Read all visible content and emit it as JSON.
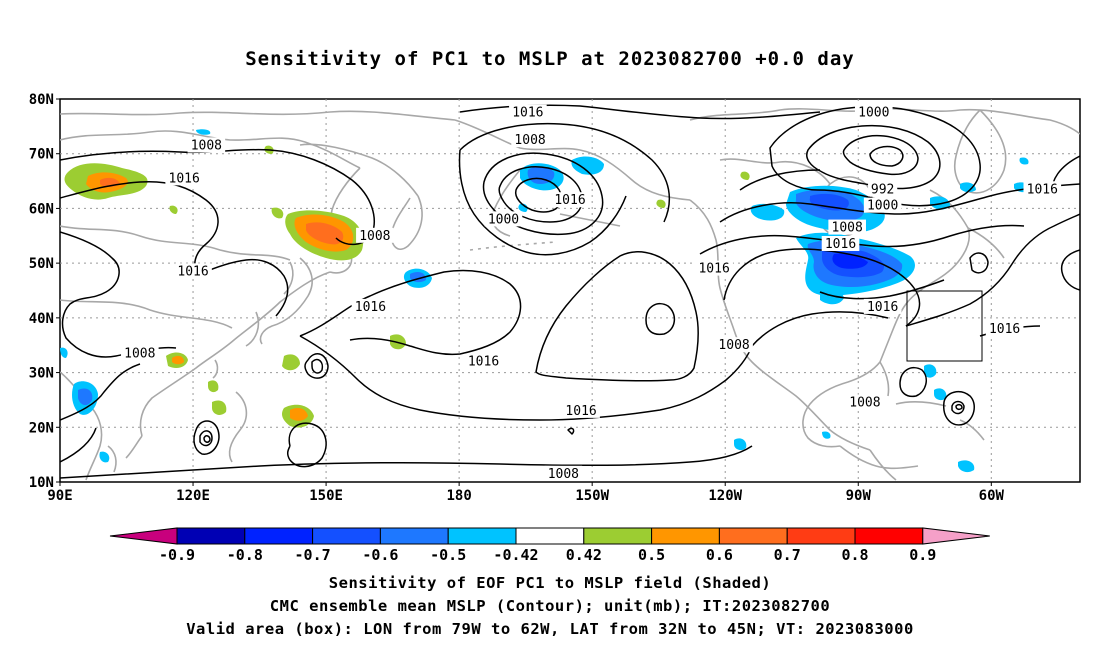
{
  "title": "Sensitivity of PC1 to MSLP at 2023082700 +0.0 day",
  "map": {
    "lat_labels": [
      "80N",
      "70N",
      "60N",
      "50N",
      "40N",
      "30N",
      "20N",
      "10N"
    ],
    "lon_labels": [
      "90E",
      "120E",
      "150E",
      "180",
      "150W",
      "120W",
      "90W",
      "60W"
    ],
    "lat_values": [
      80,
      70,
      60,
      50,
      40,
      30,
      20,
      10
    ],
    "lon_values": [
      90,
      120,
      150,
      180,
      210,
      240,
      270,
      300
    ],
    "lon_range": [
      90,
      320
    ],
    "lat_range": [
      10,
      80
    ],
    "contour_labels": [
      {
        "text": "1008",
        "lon": 123,
        "lat": 71.5
      },
      {
        "text": "1016",
        "lon": 118,
        "lat": 65.5
      },
      {
        "text": "1008",
        "lon": 161,
        "lat": 55
      },
      {
        "text": "1016",
        "lon": 120,
        "lat": 48.5
      },
      {
        "text": "1016",
        "lon": 160,
        "lat": 42
      },
      {
        "text": "1008",
        "lon": 108,
        "lat": 33.5
      },
      {
        "text": "1016",
        "lon": 195.5,
        "lat": 77.5
      },
      {
        "text": "1008",
        "lon": 196,
        "lat": 72.5
      },
      {
        "text": "1000",
        "lon": 190,
        "lat": 58
      },
      {
        "text": "1016",
        "lon": 205,
        "lat": 61.5
      },
      {
        "text": "1016",
        "lon": 185.5,
        "lat": 32
      },
      {
        "text": "1016",
        "lon": 207.5,
        "lat": 23
      },
      {
        "text": "1008",
        "lon": 203.5,
        "lat": 11.5
      },
      {
        "text": "1016",
        "lon": 237.5,
        "lat": 49
      },
      {
        "text": "1008",
        "lon": 242,
        "lat": 35
      },
      {
        "text": "1000",
        "lon": 273.5,
        "lat": 77.5
      },
      {
        "text": "992",
        "lon": 275.5,
        "lat": 63.5
      },
      {
        "text": "1000",
        "lon": 275.5,
        "lat": 60.5
      },
      {
        "text": "1008",
        "lon": 267.5,
        "lat": 56.5
      },
      {
        "text": "1016",
        "lon": 266,
        "lat": 53.5
      },
      {
        "text": "1016",
        "lon": 275.5,
        "lat": 42
      },
      {
        "text": "1008",
        "lon": 271.5,
        "lat": 24.5
      },
      {
        "text": "1016",
        "lon": 311.5,
        "lat": 63.5
      },
      {
        "text": "1016",
        "lon": 303,
        "lat": 38
      }
    ],
    "valid_box": {
      "lon": [
        281,
        298
      ],
      "lat": [
        32,
        45
      ]
    }
  },
  "colorbar": {
    "labels": [
      "-0.9",
      "-0.8",
      "-0.7",
      "-0.6",
      "-0.5",
      "-0.42",
      "0.42",
      "0.5",
      "0.6",
      "0.7",
      "0.8",
      "0.9"
    ],
    "colors": [
      "#c8007d",
      "#0000b4",
      "#0022ff",
      "#1450ff",
      "#1e78ff",
      "#00c3ff",
      "#ffffff",
      "#9ccd32",
      "#ff9600",
      "#ff6e1e",
      "#ff3c14",
      "#ff0000",
      "#f5a0c8"
    ]
  },
  "footer": {
    "line1": "Sensitivity of EOF PC1 to MSLP field (Shaded)",
    "line2": "CMC ensemble mean MSLP (Contour); unit(mb); IT:2023082700",
    "line3": "Valid area (box): LON from 79W to 62W, LAT from 32N to 45N; VT: 2023083000"
  }
}
